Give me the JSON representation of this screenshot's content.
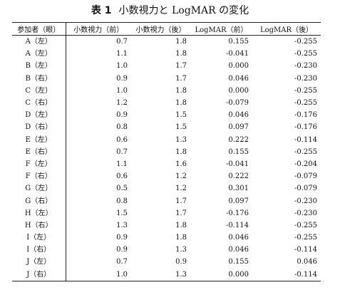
{
  "caption": {
    "label": "表 1",
    "text": "小数視力と LogMAR の変化"
  },
  "headers": [
    "参加者（眼）",
    "小数視力（前）",
    "小数視力（後）",
    "LogMAR（前）",
    "LogMAR（後）"
  ],
  "rows": [
    [
      "A（左）",
      "0.7",
      "1.8",
      "0.155",
      "-0.255"
    ],
    [
      "A（左）",
      "1.1",
      "1.8",
      "-0.041",
      "-0.255"
    ],
    [
      "B（左）",
      "1.0",
      "1.7",
      "0.000",
      "-0.230"
    ],
    [
      "B（右）",
      "0.9",
      "1.7",
      "0.046",
      "-0.230"
    ],
    [
      "C（左）",
      "1.0",
      "1.8",
      "0.000",
      "-0.255"
    ],
    [
      "C（右）",
      "1.2",
      "1.8",
      "-0.079",
      "-0.255"
    ],
    [
      "D（左）",
      "0.9",
      "1.5",
      "0.046",
      "-0.176"
    ],
    [
      "D（右）",
      "0.8",
      "1.5",
      "0.097",
      "-0.176"
    ],
    [
      "E（左）",
      "0.6",
      "1.3",
      "0.222",
      "-0.114"
    ],
    [
      "E（右）",
      "0.7",
      "1.8",
      "0.155",
      "-0.255"
    ],
    [
      "F（左）",
      "1.1",
      "1.6",
      "-0.041",
      "-0.204"
    ],
    [
      "F（右）",
      "0.6",
      "1.2",
      "0.222",
      "-0.079"
    ],
    [
      "G（左）",
      "0.5",
      "1.2",
      "0.301",
      "-0.079"
    ],
    [
      "G（右）",
      "0.8",
      "1.7",
      "0.097",
      "-0.230"
    ],
    [
      "H（左）",
      "1.5",
      "1.7",
      "-0.176",
      "-0.230"
    ],
    [
      "H（右）",
      "1.3",
      "1.8",
      "-0.114",
      "-0.255"
    ],
    [
      "I（左）",
      "0.9",
      "1.8",
      "0.046",
      "-0.255"
    ],
    [
      "I（右）",
      "0.9",
      "1.3",
      "0.046",
      "-0.114"
    ],
    [
      "J（左）",
      "0.7",
      "0.9",
      "0.155",
      "0.046"
    ],
    [
      "J（右）",
      "1.0",
      "1.3",
      "0.000",
      "-0.114"
    ]
  ]
}
